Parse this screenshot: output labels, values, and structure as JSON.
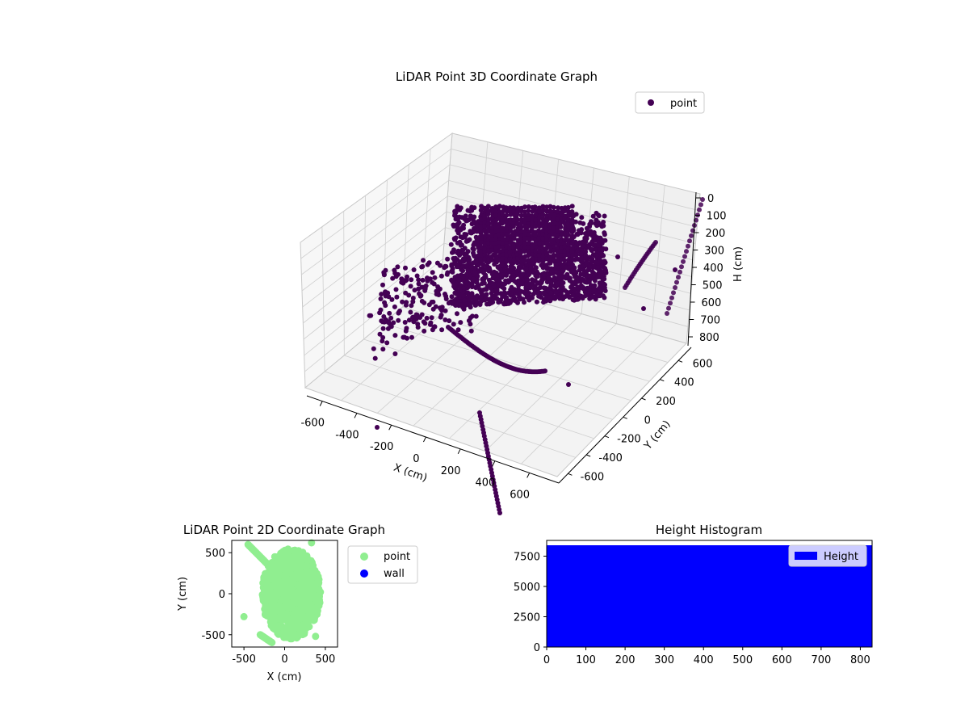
{
  "chart_data": [
    {
      "type": "scatter",
      "title": "LiDAR Point 3D Coordinate Graph",
      "xlabel": "X (cm)",
      "ylabel": "Y (cm)",
      "zlabel": "H (cm)",
      "x_ticks": [
        "-600",
        "-400",
        "-200",
        "0",
        "200",
        "400",
        "600"
      ],
      "y_ticks": [
        "-600",
        "-400",
        "-200",
        "0",
        "200",
        "400",
        "600"
      ],
      "z_ticks": [
        "0",
        "100",
        "200",
        "300",
        "400",
        "500",
        "600",
        "700",
        "800"
      ],
      "legend": [
        "point"
      ],
      "legend_position": "upper-right",
      "grid": true,
      "point_color": "#440154",
      "series": [
        {
          "name": "point",
          "description_count": "dense point cloud"
        }
      ]
    },
    {
      "type": "scatter",
      "title": "LiDAR Point 2D Coordinate Graph",
      "xlabel": "X (cm)",
      "ylabel": "Y (cm)",
      "x_ticks": [
        "-500",
        "0",
        "500"
      ],
      "y_ticks": [
        "500",
        "0",
        "-500"
      ],
      "xlim": [
        -650,
        650
      ],
      "ylim": [
        -650,
        650
      ],
      "legend_position": "outside-right",
      "series": [
        {
          "name": "point",
          "color": "#90ee90"
        },
        {
          "name": "wall",
          "color": "#0000ff"
        }
      ]
    },
    {
      "type": "bar",
      "title": "Height Histogram",
      "xlim": [
        0,
        830
      ],
      "ylim": [
        0,
        8800
      ],
      "x_ticks": [
        "0",
        "100",
        "200",
        "300",
        "400",
        "500",
        "600",
        "700",
        "800"
      ],
      "y_ticks": [
        "0",
        "2500",
        "5000",
        "7500"
      ],
      "legend_position": "upper-right",
      "series": [
        {
          "name": "Height",
          "color": "#0000ff",
          "value": 8400
        }
      ]
    }
  ]
}
